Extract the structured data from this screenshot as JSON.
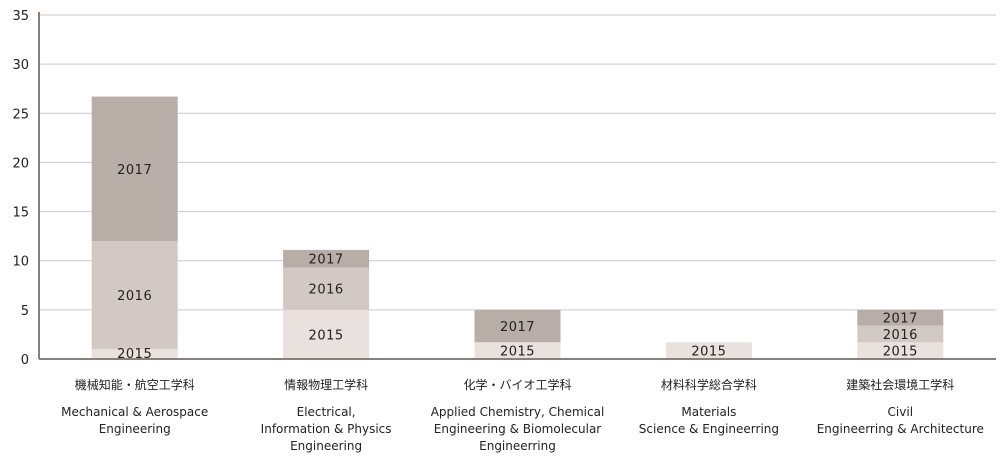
{
  "chart_data": {
    "type": "bar",
    "stacked": true,
    "ylim": [
      0,
      35
    ],
    "yticks": [
      0,
      5,
      10,
      15,
      20,
      25,
      30,
      35
    ],
    "grid": true,
    "categories": [
      {
        "ja": "機械知能・航空工学科",
        "en": [
          "Mechanical & Aerospace",
          "Engineering"
        ]
      },
      {
        "ja": "情報物理工学科",
        "en": [
          "Electrical,",
          "Information & Physics",
          "Engineering"
        ]
      },
      {
        "ja": "化学・バイオ工学科",
        "en": [
          "Applied Chemistry, Chemical",
          "Engineering & Biomolecular",
          "Engineerring"
        ]
      },
      {
        "ja": "材料科学総合学科",
        "en": [
          "Materials",
          "Science & Engineerring"
        ]
      },
      {
        "ja": "建築社会環境工学科",
        "en": [
          "Civil",
          "Engineerring & Architecture"
        ]
      }
    ],
    "series": [
      {
        "name": "2015",
        "color": "#e8e1dd",
        "values": [
          1,
          5,
          1.7,
          1.7,
          1.7
        ]
      },
      {
        "name": "2016",
        "color": "#d3c9c4",
        "values": [
          11,
          4.3,
          0,
          0,
          1.7
        ]
      },
      {
        "name": "2017",
        "color": "#b9ada7",
        "values": [
          14.7,
          1.8,
          3.3,
          0,
          1.6
        ]
      }
    ]
  }
}
